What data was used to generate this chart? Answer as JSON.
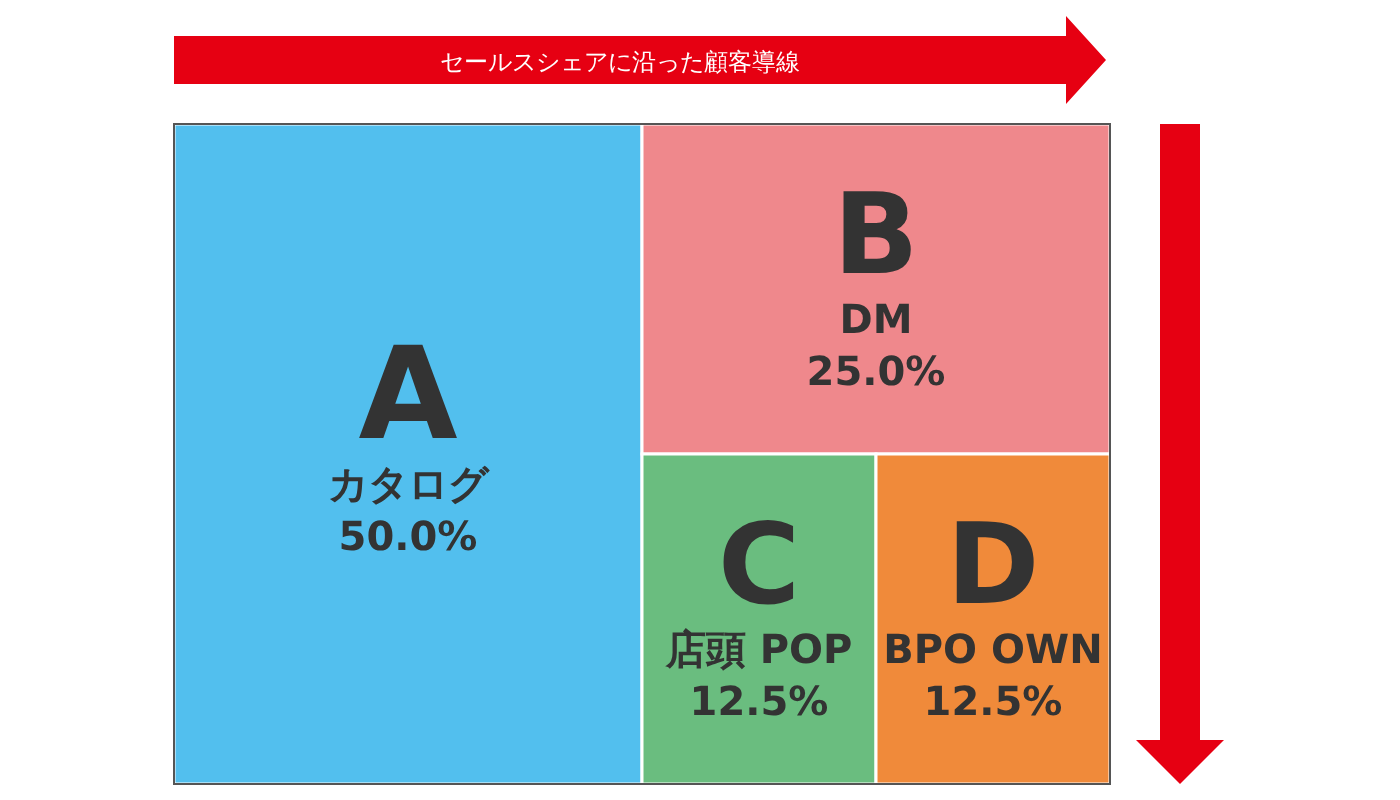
{
  "chart_data": {
    "type": "other",
    "title": "セールスシェアに沿った顧客導線",
    "categories": [
      "A",
      "B",
      "C",
      "D"
    ],
    "values": [
      50,
      25,
      12.5,
      12.5
    ],
    "value_labels": [
      "50.0%",
      "25.0%",
      "12.5%",
      "12.5%"
    ],
    "colors": [
      "#52bfee",
      "#ef888c",
      "#6abd7f",
      "#f08a3a"
    ],
    "annotations": [
      {
        "text": "カタログ",
        "x": "A"
      },
      {
        "text": "DM",
        "x": "B"
      },
      {
        "text": "店頭 POP",
        "x": "C"
      },
      {
        "text": "BPO OWN",
        "x": "D"
      }
    ]
  }
}
